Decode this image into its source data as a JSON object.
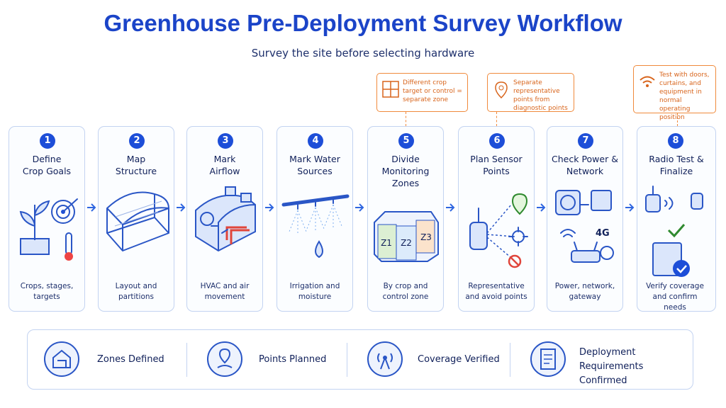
{
  "header": {
    "title": "Greenhouse Pre-Deployment Survey Workflow",
    "subtitle": "Survey the site before selecting hardware"
  },
  "callouts": [
    "Different crop target or control = separate zone",
    "Separate representative points from diagnostic points",
    "Test with doors, curtains, and equipment in normal operating position"
  ],
  "steps": [
    {
      "number": "1",
      "title": [
        "Define",
        "Crop Goals"
      ],
      "description": "Crops, stages, targets"
    },
    {
      "number": "2",
      "title": [
        "Map",
        "Structure"
      ],
      "description": "Layout and partitions"
    },
    {
      "number": "3",
      "title": [
        "Mark",
        "Airflow"
      ],
      "description": "HVAC and air movement"
    },
    {
      "number": "4",
      "title": [
        "Mark Water",
        "Sources"
      ],
      "description": "Irrigation and moisture"
    },
    {
      "number": "5",
      "title": [
        "Divide",
        "Monitoring Zones"
      ],
      "description": "By crop and control zone",
      "zone_labels": [
        "Z1",
        "Z2",
        "Z3"
      ]
    },
    {
      "number": "6",
      "title": [
        "Plan Sensor",
        "Points"
      ],
      "description": "Representative and avoid points"
    },
    {
      "number": "7",
      "title": [
        "Check Power &",
        "Network"
      ],
      "description": "Power, network, gateway",
      "network_label": "4G"
    },
    {
      "number": "8",
      "title": [
        "Radio Test &",
        "Finalize"
      ],
      "description": "Verify coverage and confirm needs"
    }
  ],
  "outcomes": [
    "Zones Defined",
    "Points Planned",
    "Coverage Verified",
    "Deployment Requirements Confirmed"
  ]
}
